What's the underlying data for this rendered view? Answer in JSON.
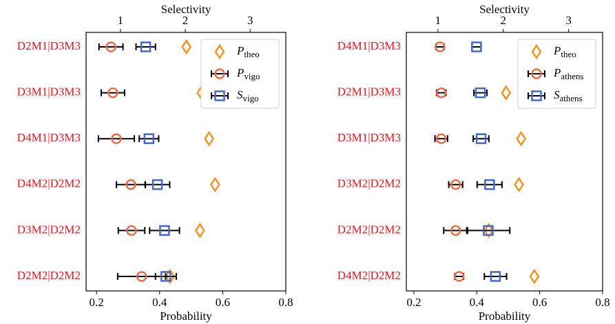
{
  "chart_data": [
    {
      "type": "dot",
      "xlabel": "Probability",
      "x2label": "Selectivity",
      "xlim": [
        0.167,
        0.8
      ],
      "xticks": [
        0.2,
        0.4,
        0.6,
        0.8
      ],
      "x2lim": [
        0.47,
        3.55
      ],
      "x2ticks": [
        1,
        2,
        3
      ],
      "legend": "upper right",
      "categories": [
        "D2M1|D3M3",
        "D3M1|D3M3",
        "D4M1|D3M3",
        "D4M2|D2M2",
        "D3M2|D2M2",
        "D2M2|D2M2"
      ],
      "series": [
        {
          "name": "P",
          "subscript": "theo",
          "marker": "diamond",
          "color": "#f39321",
          "values": [
            0.485,
            0.533,
            0.557,
            0.576,
            0.528,
            0.433
          ]
        },
        {
          "name": "P",
          "subscript": "vigo",
          "marker": "circle",
          "color": "#ef6a47",
          "values": [
            0.246,
            0.252,
            0.263,
            0.309,
            0.311,
            0.343
          ],
          "errors": [
            0.038,
            0.037,
            0.057,
            0.046,
            0.042,
            0.076
          ]
        },
        {
          "name": "S",
          "subscript": "vigo",
          "marker": "square",
          "color": "#4468d0",
          "axis": "x2",
          "values": [
            1.39,
            2.54,
            1.44,
            1.57,
            1.68,
            1.7
          ],
          "errors": [
            0.15,
            0.11,
            0.15,
            0.19,
            0.23,
            0.16
          ]
        }
      ]
    },
    {
      "type": "dot",
      "xlabel": "Probability",
      "x2label": "Selectivity",
      "xlim": [
        0.176,
        0.8
      ],
      "xticks": [
        0.2,
        0.4,
        0.6,
        0.8
      ],
      "x2lim": [
        0.516,
        3.52
      ],
      "x2ticks": [
        1,
        2,
        3
      ],
      "legend": "upper right",
      "categories": [
        "D4M1|D3M3",
        "D2M1|D3M3",
        "D3M1|D3M3",
        "D3M2|D2M2",
        "D2M2|D2M2",
        "D4M2|D2M2"
      ],
      "series": [
        {
          "name": "P",
          "subscript": "theo",
          "marker": "diamond",
          "color": "#f39321",
          "values": [
            0.563,
            0.493,
            0.541,
            0.534,
            0.438,
            0.583
          ]
        },
        {
          "name": "P",
          "subscript": "athens",
          "marker": "circle",
          "color": "#ef6a47",
          "values": [
            0.283,
            0.287,
            0.287,
            0.333,
            0.333,
            0.344
          ],
          "errors": [
            0.013,
            0.015,
            0.02,
            0.022,
            0.038,
            0.014
          ]
        },
        {
          "name": "S",
          "subscript": "athens",
          "marker": "square",
          "color": "#4468d0",
          "axis": "x2",
          "values": [
            1.59,
            1.65,
            1.66,
            1.79,
            1.77,
            1.88
          ],
          "errors": [
            0.07,
            0.1,
            0.12,
            0.19,
            0.33,
            0.17
          ]
        }
      ]
    }
  ]
}
